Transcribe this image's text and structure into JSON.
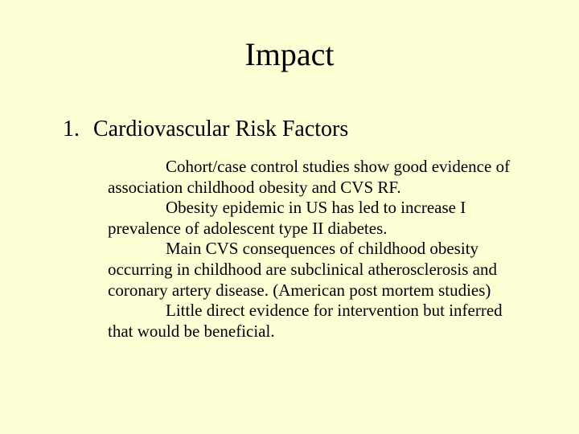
{
  "slide": {
    "background_color": "#ffffd6",
    "text_color": "#000000",
    "font_family": "Times New Roman",
    "title": "Impact",
    "title_fontsize": 40,
    "list_number": "1.",
    "heading": "Cardiovascular Risk Factors",
    "heading_fontsize": 28,
    "body_fontsize": 21,
    "paragraphs": [
      "Cohort/case control studies show good evidence of association childhood obesity and CVS RF.",
      "Obesity epidemic in US has led to increase I prevalence of adolescent type II diabetes.",
      "Main CVS consequences of childhood obesity occurring in childhood are subclinical atherosclerosis and coronary artery disease. (American post mortem studies)",
      "Little direct evidence for intervention but inferred that would be beneficial."
    ]
  }
}
